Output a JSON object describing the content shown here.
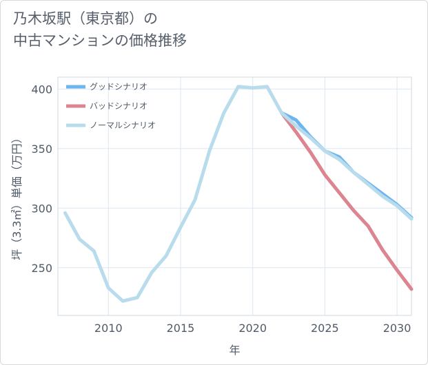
{
  "title": {
    "line1": "乃木坂駅（東京都）の",
    "line2": "中古マンションの価格推移"
  },
  "colors": {
    "good": "#6cb6f0",
    "bad": "#dc8591",
    "normal": "#b9dced",
    "grid": "#dce6f0",
    "axis_text": "#4f5a68"
  },
  "chart_data": {
    "type": "line",
    "title": "乃木坂駅（東京都）の中古マンションの価格推移",
    "xlabel": "年",
    "ylabel": "坪（3.3㎡）単価（万円）",
    "xlim": [
      2006.5,
      2031
    ],
    "ylim": [
      210,
      410
    ],
    "xticks": [
      2010,
      2015,
      2020,
      2025,
      2030
    ],
    "yticks": [
      250,
      300,
      350,
      400
    ],
    "grid": true,
    "legend_position": "top-left",
    "series": [
      {
        "name": "グッドシナリオ",
        "key": "good",
        "x": [
          2022,
          2023,
          2024,
          2025,
          2026,
          2027,
          2028,
          2029,
          2030,
          2031
        ],
        "y": [
          380,
          374,
          360,
          348,
          343,
          330,
          321,
          312,
          303,
          292
        ]
      },
      {
        "name": "バッドシナリオ",
        "key": "bad",
        "x": [
          2022,
          2023,
          2024,
          2025,
          2026,
          2027,
          2028,
          2029,
          2030,
          2031
        ],
        "y": [
          380,
          364,
          347,
          328,
          313,
          298,
          285,
          265,
          248,
          232
        ]
      },
      {
        "name": "ノーマルシナリオ",
        "key": "normal",
        "x": [
          2007,
          2008,
          2009,
          2010,
          2011,
          2012,
          2013,
          2014,
          2015,
          2016,
          2017,
          2018,
          2019,
          2020,
          2021,
          2022,
          2023,
          2024,
          2025,
          2026,
          2027,
          2028,
          2029,
          2030,
          2031
        ],
        "y": [
          296,
          274,
          264,
          233,
          222,
          225,
          246,
          260,
          284,
          307,
          348,
          380,
          402,
          401,
          402,
          380,
          369,
          359,
          348,
          341,
          330,
          320,
          310,
          302,
          291
        ]
      }
    ]
  }
}
